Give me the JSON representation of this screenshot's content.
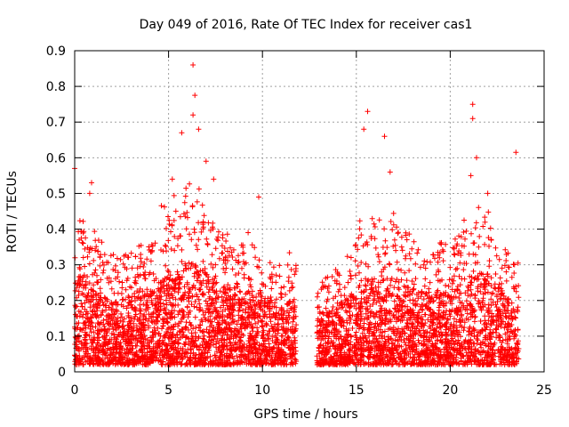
{
  "chart_data": {
    "type": "scatter",
    "title": "Day 049 of 2016, Rate Of TEC Index for receiver cas1",
    "xlabel": "GPS time / hours",
    "ylabel": "ROTI / TECUs",
    "xlim": [
      0,
      25
    ],
    "ylim": [
      0,
      0.9
    ],
    "xticks": [
      0,
      5,
      10,
      15,
      20,
      25
    ],
    "xtick_labels": [
      "0",
      "5",
      "10",
      "15",
      "20",
      "25"
    ],
    "yticks": [
      0,
      0.1,
      0.2,
      0.3,
      0.4,
      0.5,
      0.6,
      0.7,
      0.8,
      0.9
    ],
    "ytick_labels": [
      "0",
      "0.1",
      "0.2",
      "0.3",
      "0.4",
      "0.5",
      "0.6",
      "0.7",
      "0.8",
      "0.9"
    ],
    "grid": true,
    "marker": "+",
    "color": "#ff0000",
    "gap_hours": [
      11.8,
      12.9
    ],
    "notable_points": [
      {
        "x": 0.0,
        "y": 0.57
      },
      {
        "x": 0.8,
        "y": 0.5
      },
      {
        "x": 0.9,
        "y": 0.53
      },
      {
        "x": 5.2,
        "y": 0.54
      },
      {
        "x": 5.7,
        "y": 0.67
      },
      {
        "x": 6.3,
        "y": 0.86
      },
      {
        "x": 6.4,
        "y": 0.775
      },
      {
        "x": 6.3,
        "y": 0.72
      },
      {
        "x": 6.6,
        "y": 0.68
      },
      {
        "x": 7.0,
        "y": 0.59
      },
      {
        "x": 7.4,
        "y": 0.54
      },
      {
        "x": 9.8,
        "y": 0.49
      },
      {
        "x": 15.6,
        "y": 0.73
      },
      {
        "x": 15.4,
        "y": 0.68
      },
      {
        "x": 16.5,
        "y": 0.66
      },
      {
        "x": 16.8,
        "y": 0.56
      },
      {
        "x": 21.2,
        "y": 0.75
      },
      {
        "x": 21.2,
        "y": 0.71
      },
      {
        "x": 21.4,
        "y": 0.6
      },
      {
        "x": 21.1,
        "y": 0.55
      },
      {
        "x": 22.0,
        "y": 0.5
      },
      {
        "x": 23.5,
        "y": 0.615
      }
    ],
    "density_profile": {
      "hours": [
        0,
        1,
        2,
        3,
        4,
        5,
        6,
        7,
        8,
        9,
        10,
        11,
        11.8,
        12.9,
        14,
        15,
        16,
        17,
        18,
        19,
        20,
        21,
        22,
        23,
        23.6
      ],
      "typical_max": [
        0.4,
        0.32,
        0.27,
        0.3,
        0.33,
        0.4,
        0.45,
        0.4,
        0.34,
        0.32,
        0.3,
        0.25,
        0.3,
        0.22,
        0.25,
        0.33,
        0.4,
        0.38,
        0.33,
        0.3,
        0.32,
        0.38,
        0.4,
        0.3,
        0.25
      ]
    }
  }
}
